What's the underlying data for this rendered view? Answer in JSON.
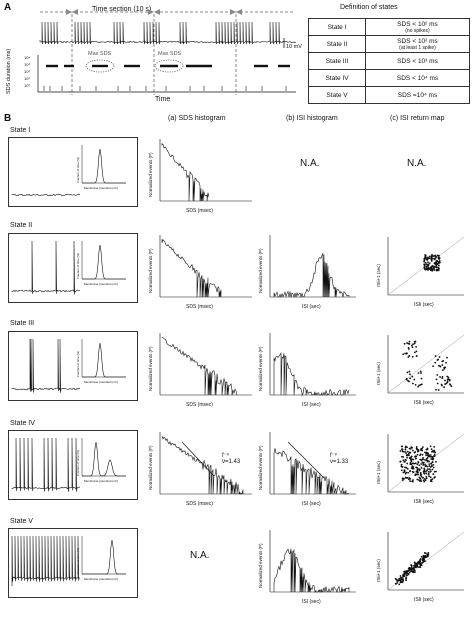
{
  "panelA": {
    "label": "A",
    "time_section": "Time section (10 s)",
    "scale_bar": "10 mV",
    "max_sds": "Max SDS",
    "y_axis": "SDS duration (ms)",
    "x_axis": "Time",
    "y_ticks": [
      "10⁴",
      "10³",
      "10²",
      "10¹",
      "10⁰"
    ]
  },
  "definition": {
    "title": "Definition of states",
    "rows": [
      {
        "state": "State I",
        "rule": "SDS < 10² ms",
        "note": "(no spikes)"
      },
      {
        "state": "State II",
        "rule": "SDS < 10² ms",
        "note": "(at least 1 spike)"
      },
      {
        "state": "State III",
        "rule": "SDS < 10³ ms",
        "note": ""
      },
      {
        "state": "State IV",
        "rule": "SDS < 10⁴ ms",
        "note": ""
      },
      {
        "state": "State V",
        "rule": "SDS =10⁴ ms",
        "note": ""
      }
    ]
  },
  "panelB": {
    "label": "B",
    "col_a": "(a) SDS histogram",
    "col_b": "(b) ISI histogram",
    "col_c": "(c) ISI return map",
    "states": [
      "State I",
      "State II",
      "State III",
      "State IV",
      "State V"
    ],
    "inset_y": "Fraction of time (%)",
    "inset_x": "Membrane potential (mV)",
    "sds_ylabel": "Normalized events (P)",
    "sds_xlabel": "SDS (msec)",
    "isi_ylabel": "Normalized events (P)",
    "isi_xlabel": "ISI (sec)",
    "rm_ylabel": "ISIi+1 (sec)",
    "rm_xlabel": "ISIi (sec)",
    "na": "N.A.",
    "powerlaw_formula": "f⁻ᵛ",
    "nu_iv_sds": "ν=1.43",
    "nu_iv_isi": "ν=1.33"
  }
}
